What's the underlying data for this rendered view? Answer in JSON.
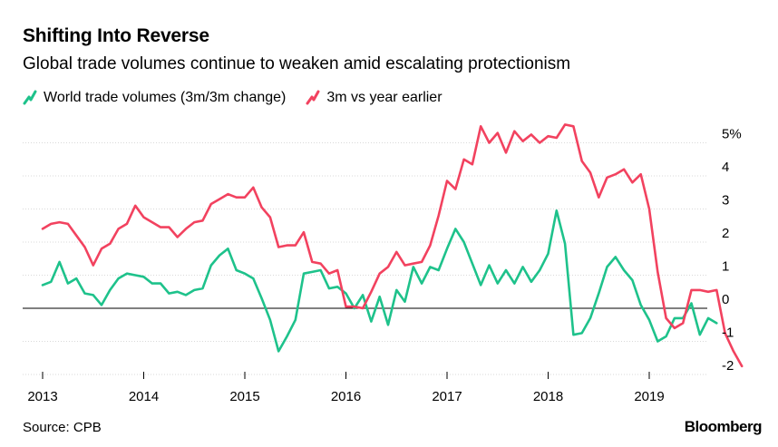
{
  "header": {
    "title": "Shifting Into Reverse",
    "subtitle": "Global trade volumes continue to weaken amid escalating protectionism"
  },
  "footer": {
    "source": "Source: CPB",
    "brand": "Bloomberg"
  },
  "colors": {
    "green": "#1ec28b",
    "red": "#f2425f",
    "grid": "#d9d9d9",
    "zero": "#000000"
  },
  "chart_data": {
    "type": "line",
    "legend_position": "top-left",
    "grid": true,
    "ylim": [
      -2.5,
      5.2
    ],
    "y_ticks": [
      {
        "value": 5,
        "label": "5%"
      },
      {
        "value": 4,
        "label": "4"
      },
      {
        "value": 3,
        "label": "3"
      },
      {
        "value": 2,
        "label": "2"
      },
      {
        "value": 1,
        "label": "1"
      },
      {
        "value": 0,
        "label": "0"
      },
      {
        "value": -1,
        "label": "-1"
      },
      {
        "value": -2,
        "label": "-2"
      }
    ],
    "x_ticks": [
      "2013",
      "2014",
      "2015",
      "2016",
      "2017",
      "2018",
      "2019"
    ],
    "x_start": "2013-01",
    "series": [
      {
        "name": "World trade volumes (3m/3m change)",
        "color": "#1ec28b",
        "values": [
          0.7,
          0.8,
          1.4,
          0.75,
          0.9,
          0.45,
          0.4,
          0.1,
          0.55,
          0.9,
          1.05,
          1.0,
          0.95,
          0.75,
          0.75,
          0.45,
          0.5,
          0.4,
          0.55,
          0.6,
          1.3,
          1.6,
          1.8,
          1.15,
          1.05,
          0.9,
          0.3,
          -0.35,
          -1.3,
          -0.85,
          -0.35,
          1.05,
          1.1,
          1.15,
          0.6,
          0.65,
          0.45,
          0.0,
          0.4,
          -0.4,
          0.35,
          -0.5,
          0.55,
          0.2,
          1.25,
          0.75,
          1.25,
          1.15,
          1.8,
          2.4,
          2.0,
          1.35,
          0.7,
          1.3,
          0.75,
          1.15,
          0.75,
          1.25,
          0.8,
          1.15,
          1.65,
          2.95,
          1.95,
          -0.8,
          -0.75,
          -0.3,
          0.45,
          1.25,
          1.55,
          1.15,
          0.85,
          0.1,
          -0.35,
          -1.0,
          -0.85,
          -0.3,
          -0.3,
          0.15,
          -0.8,
          -0.3,
          -0.45
        ]
      },
      {
        "name": "3m vs year earlier",
        "color": "#f2425f",
        "values": [
          2.4,
          2.55,
          2.6,
          2.55,
          2.2,
          1.85,
          1.3,
          1.8,
          1.95,
          2.4,
          2.55,
          3.1,
          2.75,
          2.6,
          2.45,
          2.45,
          2.15,
          2.4,
          2.6,
          2.65,
          3.15,
          3.3,
          3.45,
          3.35,
          3.35,
          3.65,
          3.05,
          2.75,
          1.85,
          1.9,
          1.9,
          2.3,
          1.4,
          1.35,
          1.05,
          1.15,
          0.05,
          0.05,
          0.0,
          0.5,
          1.05,
          1.25,
          1.7,
          1.3,
          1.35,
          1.4,
          1.9,
          2.8,
          3.85,
          3.6,
          4.5,
          4.35,
          5.5,
          5.0,
          5.3,
          4.7,
          5.35,
          5.05,
          5.25,
          5.0,
          5.2,
          5.15,
          5.55,
          5.5,
          4.45,
          4.1,
          3.35,
          3.95,
          4.05,
          4.2,
          3.8,
          4.05,
          3.0,
          1.1,
          -0.3,
          -0.6,
          -0.45,
          0.55,
          0.55,
          0.5,
          0.55,
          -0.75,
          -1.3,
          -1.75
        ]
      }
    ]
  }
}
